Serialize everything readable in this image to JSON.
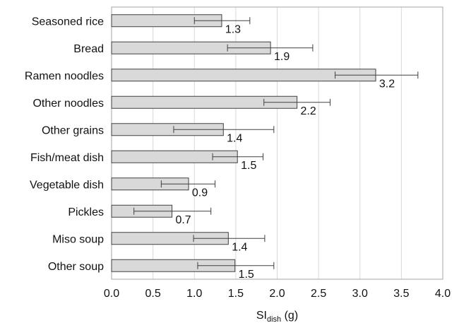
{
  "chart_data": {
    "type": "bar",
    "orientation": "horizontal",
    "categories": [
      "Seasoned rice",
      "Bread",
      "Ramen noodles",
      "Other noodles",
      "Other grains",
      "Fish/meat dish",
      "Vegetable dish",
      "Pickles",
      "Miso soup",
      "Other soup"
    ],
    "series": [
      {
        "values": [
          1.33,
          1.92,
          3.19,
          2.24,
          1.35,
          1.52,
          0.93,
          0.73,
          1.41,
          1.49
        ],
        "error_low": [
          1.0,
          1.4,
          2.7,
          1.84,
          0.75,
          1.22,
          0.6,
          0.27,
          0.99,
          1.04
        ],
        "error_high": [
          1.67,
          2.43,
          3.7,
          2.64,
          1.96,
          1.83,
          1.25,
          1.2,
          1.85,
          1.96
        ],
        "data_labels": [
          "1.3",
          "1.9",
          "3.2",
          "2.2",
          "1.4",
          "1.5",
          "0.9",
          "0.7",
          "1.4",
          "1.5"
        ],
        "color": "#d9d9d9",
        "edge_color": "#404040"
      }
    ],
    "xlim": [
      0.0,
      4.0
    ],
    "xticks": [
      "0.0",
      "0.5",
      "1.0",
      "1.5",
      "2.0",
      "2.5",
      "3.0",
      "3.5",
      "4.0"
    ],
    "xlabel": {
      "main": "SI",
      "subscript": "dish",
      "unit": " (g)"
    },
    "grid": "vertical",
    "grid_color": "#d9d9d9",
    "frame_color": "#a6a6a6"
  }
}
